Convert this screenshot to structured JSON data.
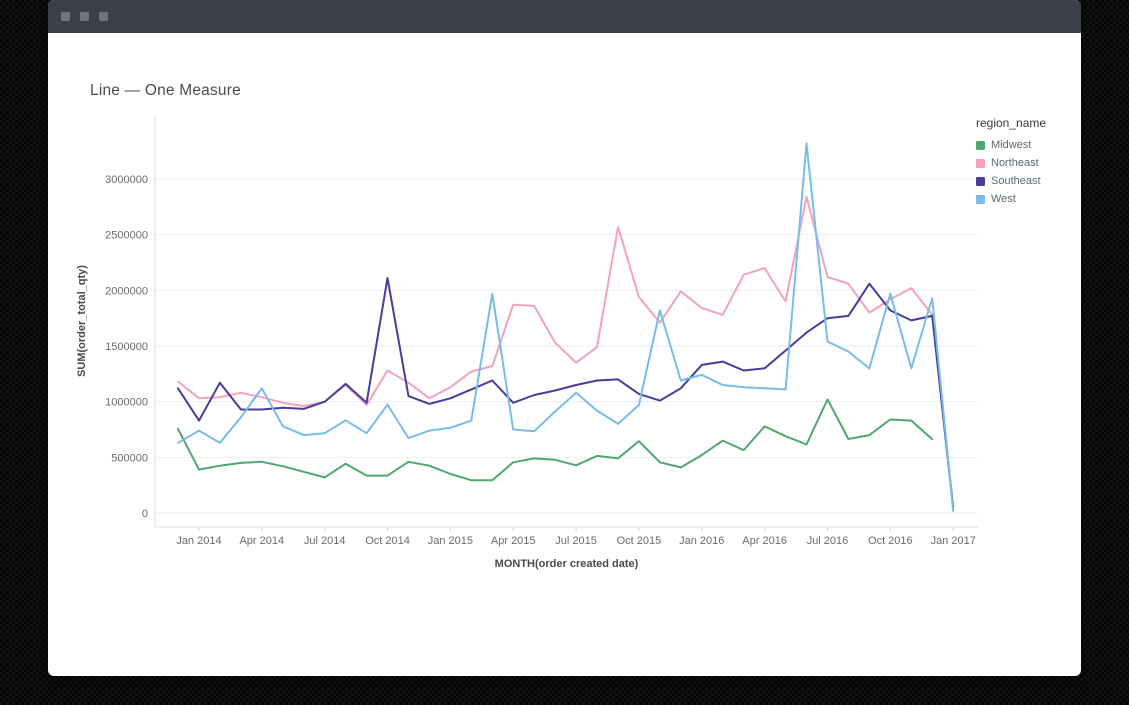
{
  "window": {
    "buttons": [
      "window-button-1",
      "window-button-2",
      "window-button-3"
    ]
  },
  "card": {
    "title": "Line — One Measure"
  },
  "chart_data": {
    "type": "line",
    "title": "Line — One Measure",
    "xlabel": "MONTH(order created date)",
    "ylabel": "SUM(order_total_qty)",
    "legend_title": "region_name",
    "legend_position": "right",
    "grid": true,
    "ylim": [
      0,
      3500000
    ],
    "y_ticks": [
      0,
      500000,
      1000000,
      1500000,
      2000000,
      2500000,
      3000000
    ],
    "y_tick_labels": [
      "0",
      "500000",
      "1000000",
      "1500000",
      "2000000",
      "2500000",
      "3000000"
    ],
    "x": [
      "Dec 2013",
      "Jan 2014",
      "Feb 2014",
      "Mar 2014",
      "Apr 2014",
      "May 2014",
      "Jun 2014",
      "Jul 2014",
      "Aug 2014",
      "Sep 2014",
      "Oct 2014",
      "Nov 2014",
      "Dec 2014",
      "Jan 2015",
      "Feb 2015",
      "Mar 2015",
      "Apr 2015",
      "May 2015",
      "Jun 2015",
      "Jul 2015",
      "Aug 2015",
      "Sep 2015",
      "Oct 2015",
      "Nov 2015",
      "Dec 2015",
      "Jan 2016",
      "Feb 2016",
      "Mar 2016",
      "Apr 2016",
      "May 2016",
      "Jun 2016",
      "Jul 2016",
      "Aug 2016",
      "Sep 2016",
      "Oct 2016",
      "Nov 2016",
      "Dec 2016",
      "Jan 2017"
    ],
    "x_tick_indices": [
      1,
      4,
      7,
      10,
      13,
      16,
      19,
      22,
      25,
      28,
      31,
      34,
      37
    ],
    "x_tick_labels": [
      "Jan 2014",
      "Apr 2014",
      "Jul 2014",
      "Oct 2014",
      "Jan 2015",
      "Apr 2015",
      "Jul 2015",
      "Oct 2015",
      "Jan 2016",
      "Apr 2016",
      "Jul 2016",
      "Oct 2016",
      "Jan 2017"
    ],
    "series": [
      {
        "name": "Midwest",
        "color": "#4ea86e",
        "values": [
          755000,
          390000,
          425000,
          450000,
          460000,
          420000,
          370000,
          320000,
          443000,
          336000,
          336000,
          460000,
          425000,
          350000,
          295000,
          295000,
          455000,
          490000,
          478000,
          428000,
          513000,
          490000,
          645000,
          455000,
          410000,
          520000,
          650000,
          565000,
          778000,
          690000,
          615000,
          1020000,
          665000,
          700000,
          840000,
          830000,
          663000,
          null
        ]
      },
      {
        "name": "Northeast",
        "color": "#f2a3bb",
        "values": [
          1180000,
          1030000,
          1040000,
          1080000,
          1040000,
          990000,
          960000,
          1000000,
          1150000,
          970000,
          1280000,
          1170000,
          1030000,
          1130000,
          1270000,
          1320000,
          1870000,
          1860000,
          1530000,
          1350000,
          1490000,
          2570000,
          1940000,
          1710000,
          1990000,
          1840000,
          1780000,
          2140000,
          2200000,
          1900000,
          2840000,
          2120000,
          2060000,
          1800000,
          1920000,
          2020000,
          1780000,
          30000
        ]
      },
      {
        "name": "Southeast",
        "color": "#473d9b",
        "values": [
          1120000,
          830000,
          1170000,
          930000,
          930000,
          945000,
          935000,
          1000000,
          1160000,
          990000,
          2110000,
          1050000,
          980000,
          1030000,
          1110000,
          1190000,
          990000,
          1060000,
          1100000,
          1150000,
          1190000,
          1200000,
          1070000,
          1010000,
          1120000,
          1330000,
          1360000,
          1280000,
          1300000,
          1460000,
          1620000,
          1750000,
          1770000,
          2060000,
          1820000,
          1730000,
          1770000,
          50000
        ]
      },
      {
        "name": "West",
        "color": "#79bce8",
        "values": [
          630000,
          740000,
          630000,
          860000,
          1120000,
          780000,
          700000,
          717000,
          833000,
          717000,
          973000,
          673000,
          740000,
          765000,
          830000,
          1970000,
          750000,
          735000,
          912000,
          1080000,
          920000,
          800000,
          970000,
          1820000,
          1190000,
          1240000,
          1150000,
          1130000,
          1120000,
          1110000,
          3320000,
          1540000,
          1450000,
          1300000,
          1970000,
          1300000,
          1930000,
          20000
        ]
      }
    ]
  }
}
